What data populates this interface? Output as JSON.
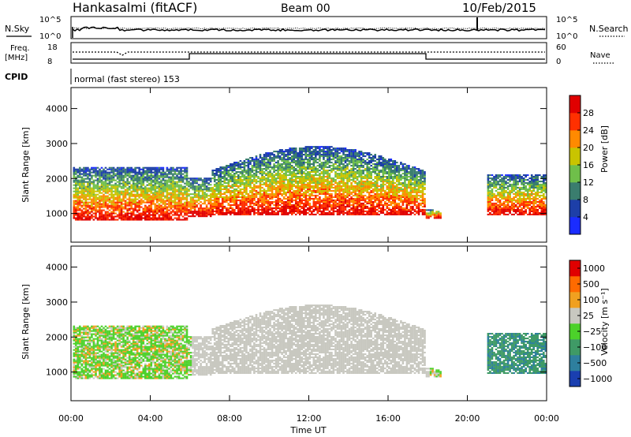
{
  "header": {
    "station": "Hankasalmi (fitACF)",
    "beam": "Beam 00",
    "date": "10/Feb/2015"
  },
  "noise_panel": {
    "left_label": "N.Sky",
    "right_label": "N.Search",
    "left_ticks": [
      "10^5",
      "10^0"
    ],
    "right_ticks": [
      "10^5",
      "10^0"
    ]
  },
  "freq_panel": {
    "left_label_1": "Freq.",
    "left_label_2": "[MHz]",
    "right_label": "Nave",
    "left_ticks": [
      "18",
      "8"
    ],
    "right_ticks": [
      "60",
      "0"
    ]
  },
  "cpid_panel": {
    "label": "CPID",
    "text": "normal (fast stereo) 153"
  },
  "chart_data": [
    {
      "type": "heatmap",
      "name": "power",
      "ylabel": "Slant Range [km]",
      "yticks": [
        1000,
        2000,
        3000,
        4000
      ],
      "ylim": [
        180,
        4600
      ],
      "xlim": [
        0,
        24
      ],
      "colorbar_label": "Power [dB]",
      "colorbar_ticks": [
        "4",
        "8",
        "12",
        "16",
        "20",
        "24",
        "28"
      ],
      "colors": [
        "#1a2cff",
        "#1d3fa8",
        "#3a7d6e",
        "#6fbf4a",
        "#c9c400",
        "#ff8a00",
        "#ff3000",
        "#e00000"
      ]
    },
    {
      "type": "heatmap",
      "name": "velocity",
      "ylabel": "Slant Range [km]",
      "yticks": [
        1000,
        2000,
        3000,
        4000
      ],
      "ylim": [
        180,
        4600
      ],
      "xlim": [
        0,
        24
      ],
      "xlabel": "Time UT",
      "xticks": [
        "00:00",
        "04:00",
        "08:00",
        "12:00",
        "16:00",
        "20:00",
        "00:00"
      ],
      "colorbar_label": "Velocity [m s⁻¹]",
      "colorbar_ticks": [
        "1000",
        "500",
        "100",
        "25",
        "−25",
        "−100",
        "−500",
        "−1000"
      ],
      "colors": [
        "#1a3fb0",
        "#2e7f9e",
        "#3f9a66",
        "#4cd12a",
        "#c8c8c0",
        "#f0a020",
        "#ff6a00",
        "#e00000"
      ]
    }
  ]
}
